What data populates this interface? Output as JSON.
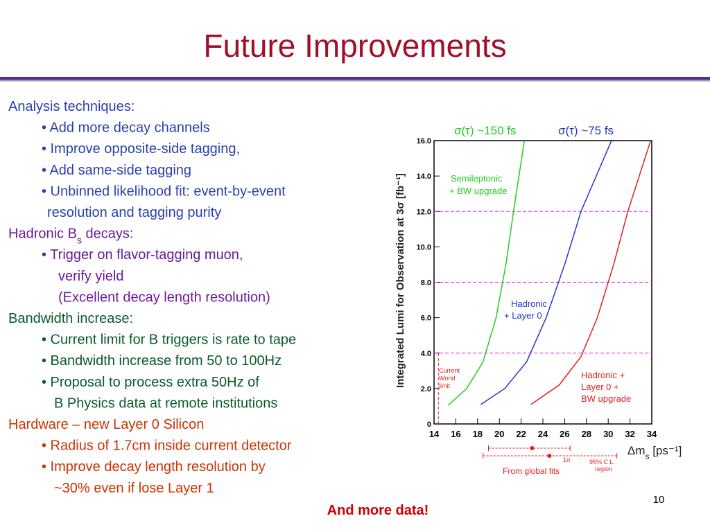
{
  "title": "Future Improvements",
  "sections": [
    {
      "heading": [
        "Analysis techniques:"
      ],
      "color": "#2b3fb0",
      "lines": [
        "• Add more decay channels",
        "• Improve opposite-side tagging,",
        "• Add same-side tagging",
        "• Unbinned likelihood fit: event-by-event",
        "resolution and tagging purity"
      ]
    },
    {
      "heading": [
        "Hadronic B",
        "s",
        " decays:"
      ],
      "color": "#6a1a9a",
      "lines": [
        "• Trigger on flavor-tagging muon,",
        "verify yield",
        "(Excellent decay length resolution)"
      ]
    },
    {
      "heading": [
        "Bandwidth increase:"
      ],
      "color": "#0a5a2a",
      "lines": [
        "• Current limit for B triggers is rate to tape",
        "• Bandwidth increase from 50 to 100Hz",
        "• Proposal to process extra 50Hz of",
        "B  Physics data at remote institutions"
      ]
    },
    {
      "heading": [
        "Hardware – new Layer 0 Silicon"
      ],
      "color": "#cc3300",
      "lines": [
        "• Radius of 1.7cm inside current detector",
        "• Improve decay length resolution by",
        "~30% even if lose  Layer 1"
      ]
    }
  ],
  "footer": "And more data!",
  "page_number": "10",
  "chart": {
    "type": "line",
    "y_label": "Integrated Lumi for Observation at 3σ   [fb⁻¹]",
    "x_label": [
      "Δm",
      "s",
      " [ps⁻¹]"
    ],
    "xlim": [
      14,
      34
    ],
    "xticks": [
      14,
      16,
      18,
      20,
      22,
      24,
      26,
      28,
      30,
      32,
      34
    ],
    "ylim": [
      0,
      16
    ],
    "yticks": [
      0,
      {
        "value": 2,
        "label": "2.0"
      },
      {
        "value": 4,
        "label": "4.0"
      },
      {
        "value": 6,
        "label": "6.0"
      },
      {
        "value": 8,
        "label": "8.0"
      },
      {
        "value": 10,
        "label": "10.0"
      },
      {
        "value": 12,
        "label": "12.0"
      },
      {
        "value": 14,
        "label": "14.0"
      },
      {
        "value": 16,
        "label": "16.0"
      }
    ],
    "series": [
      {
        "color": "#22cc22",
        "x": [
          15.3,
          17,
          18.5,
          19.7,
          20.6,
          21.3,
          22.3
        ],
        "values": [
          1.05,
          2,
          3.5,
          6,
          9,
          12,
          16
        ]
      },
      {
        "color": "#2233cc",
        "x": [
          18.3,
          20.5,
          22.5,
          24.3,
          26,
          27.5,
          30.3
        ],
        "values": [
          1.1,
          2,
          3.5,
          6,
          9,
          12,
          16
        ]
      },
      {
        "color": "#e02020",
        "x": [
          22.9,
          25.5,
          27.5,
          29,
          30.5,
          31.8,
          33.9
        ],
        "values": [
          1.1,
          2.2,
          3.8,
          6,
          9,
          12,
          16
        ]
      }
    ],
    "thresholds": [
      12,
      8,
      4
    ],
    "current_limit": 14.4,
    "fits": [
      {
        "value": 23,
        "low": 19,
        "high": 26.5
      },
      {
        "value": 24.6,
        "low": 18.5,
        "high": 30.8
      }
    ],
    "annotations": [
      "σ(τ) ~150 fs",
      "σ(τ) ~75 fs",
      "Semileptonic",
      "+ BW upgrade",
      "Hadronic",
      "+ Layer 0",
      "Hadronic +",
      "Layer 0 +",
      "BW upgrade",
      "Current",
      "World",
      "limit",
      "From global fits",
      "1σ",
      "95% C.L.",
      "region"
    ]
  }
}
